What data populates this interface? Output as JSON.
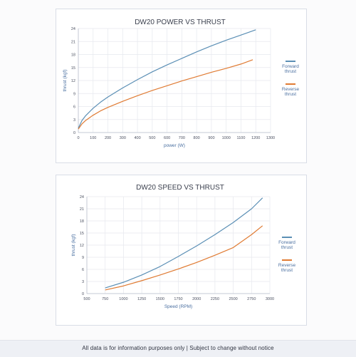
{
  "footer": {
    "note": "All data is for information purposes only | Subject to change without notice"
  },
  "chart_data": [
    {
      "type": "line",
      "title": "DW20 POWER VS THRUST",
      "xlabel": "power (W)",
      "ylabel": "thrust (kgf)",
      "xlim": [
        0,
        1300
      ],
      "ylim": [
        0,
        24
      ],
      "x_ticks": [
        0,
        100,
        200,
        300,
        400,
        500,
        600,
        700,
        800,
        900,
        1000,
        1100,
        1200,
        1300
      ],
      "y_ticks": [
        0,
        3,
        6,
        9,
        12,
        15,
        18,
        21,
        24
      ],
      "grid": true,
      "legend": "right",
      "series": [
        {
          "name": "Forward thrust",
          "color": "#5b8fb5",
          "x": [
            0,
            25,
            50,
            100,
            150,
            200,
            300,
            400,
            500,
            600,
            700,
            800,
            900,
            1000,
            1100,
            1200
          ],
          "y": [
            1,
            2.8,
            3.9,
            5.6,
            7.0,
            8.2,
            10.3,
            12.2,
            14.0,
            15.6,
            17.1,
            18.6,
            20.0,
            21.3,
            22.5,
            23.7
          ]
        },
        {
          "name": "Reverse thrust",
          "color": "#e07b33",
          "x": [
            0,
            25,
            50,
            100,
            150,
            200,
            300,
            400,
            500,
            600,
            700,
            800,
            900,
            1000,
            1100,
            1180
          ],
          "y": [
            0.8,
            2.0,
            2.8,
            4.0,
            5.0,
            5.8,
            7.2,
            8.5,
            9.7,
            10.8,
            11.9,
            12.9,
            13.9,
            14.8,
            15.8,
            16.8
          ]
        }
      ]
    },
    {
      "type": "line",
      "title": "DW20 SPEED VS THRUST",
      "xlabel": "Speed (RPM)",
      "ylabel": "thrust (kgf)",
      "xlim": [
        500,
        3000
      ],
      "ylim": [
        0,
        24
      ],
      "x_ticks": [
        500,
        750,
        1000,
        1250,
        1500,
        1750,
        2000,
        2250,
        2500,
        2750,
        3000
      ],
      "x_tick_labels": [
        "500",
        "750",
        "1000",
        "1250",
        "1500",
        "1750",
        "2000",
        "2250",
        "2500",
        "2750",
        "3000"
      ],
      "y_ticks": [
        0,
        3,
        6,
        9,
        12,
        15,
        18,
        21,
        24
      ],
      "grid": true,
      "legend": "right",
      "series": [
        {
          "name": "Forward thrust",
          "color": "#5b8fb5",
          "x": [
            750,
            1000,
            1250,
            1500,
            1750,
            2000,
            2250,
            2500,
            2750,
            2900
          ],
          "y": [
            1.4,
            2.8,
            4.6,
            6.7,
            9.2,
            11.8,
            14.6,
            17.6,
            21.0,
            23.7
          ]
        },
        {
          "name": "Reverse thrust",
          "color": "#e07b33",
          "x": [
            750,
            1000,
            1250,
            1500,
            1750,
            2000,
            2250,
            2500,
            2750,
            2900
          ],
          "y": [
            0.9,
            1.9,
            3.2,
            4.6,
            6.1,
            7.7,
            9.5,
            11.4,
            14.6,
            16.8
          ]
        }
      ]
    }
  ]
}
